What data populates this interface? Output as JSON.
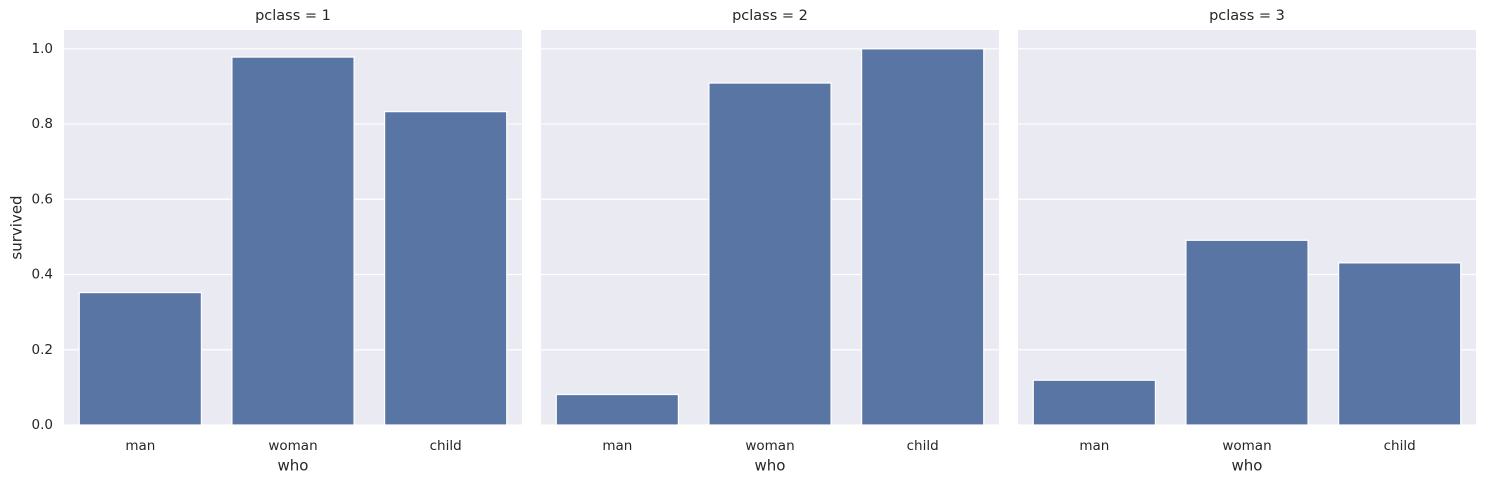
{
  "chart_data": [
    {
      "type": "bar",
      "title": "pclass = 1",
      "xlabel": "who",
      "ylabel": "survived",
      "categories": [
        "man",
        "woman",
        "child"
      ],
      "values": [
        0.352,
        0.978,
        0.833
      ],
      "color": "#5975a4",
      "ylim": [
        0,
        1.05
      ],
      "yticks": [
        {
          "value": 0,
          "label": "0.0"
        },
        0.2,
        0.4,
        0.6,
        0.8,
        {
          "value": 1,
          "label": "1.0"
        }
      ],
      "grid": true
    },
    {
      "type": "bar",
      "title": "pclass = 2",
      "xlabel": "who",
      "categories": [
        "man",
        "woman",
        "child"
      ],
      "values": [
        0.081,
        0.909,
        1.0
      ],
      "color": "#5975a4",
      "ylim": [
        0,
        1.05
      ],
      "yticks": [
        0,
        0.2,
        0.4,
        0.6,
        0.8,
        1
      ],
      "grid": true
    },
    {
      "type": "bar",
      "title": "pclass = 3",
      "xlabel": "who",
      "categories": [
        "man",
        "woman",
        "child"
      ],
      "values": [
        0.119,
        0.491,
        0.431
      ],
      "color": "#5975a4",
      "ylim": [
        0,
        1.05
      ],
      "yticks": [
        0,
        0.2,
        0.4,
        0.6,
        0.8,
        1
      ],
      "grid": true
    }
  ]
}
